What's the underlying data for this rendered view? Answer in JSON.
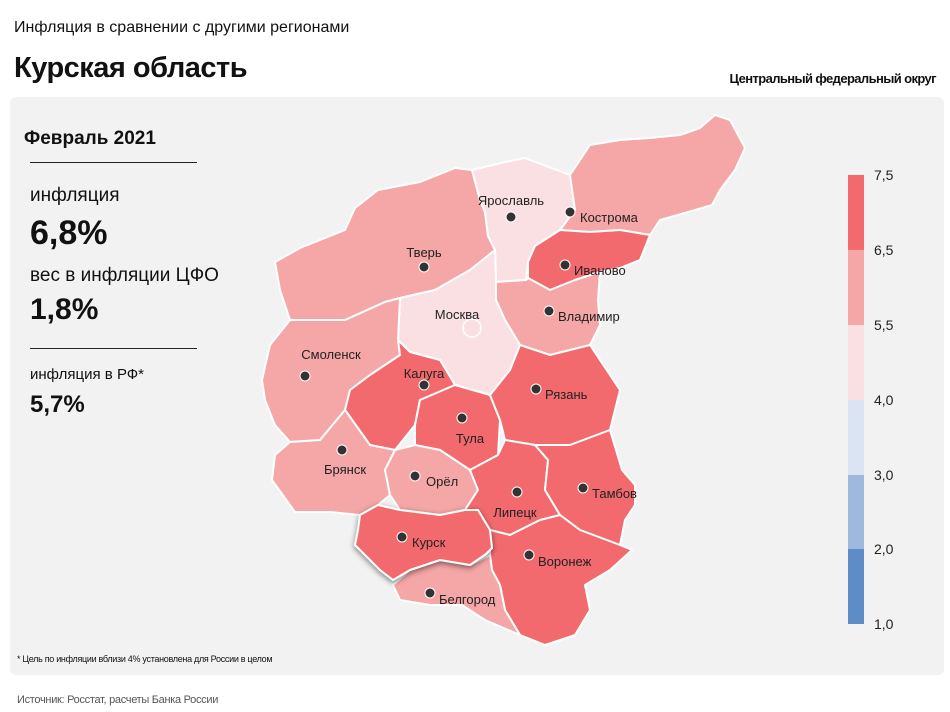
{
  "header": {
    "subtitle": "Инфляция в сравнении с другими регионами",
    "title": "Курская область",
    "district": "Центральный федеральный округ"
  },
  "stats": {
    "period": "Февраль 2021",
    "inflation_label": "инфляция",
    "inflation_value": "6,8%",
    "weight_label": "вес в инфляции ЦФО",
    "weight_value": "1,8%",
    "rf_label": "инфляция в РФ*",
    "rf_value": "5,7%"
  },
  "map": {
    "highlighted": "Курск",
    "regions": [
      {
        "name": "Ярославль",
        "bin": "4,0–5,5"
      },
      {
        "name": "Кострома",
        "bin": "5,5–6,5"
      },
      {
        "name": "Тверь",
        "bin": "5,5–6,5"
      },
      {
        "name": "Иваново",
        "bin": "6,5–7,5"
      },
      {
        "name": "Москва",
        "bin": "4,0–5,5"
      },
      {
        "name": "Владимир",
        "bin": "5,5–6,5"
      },
      {
        "name": "Смоленск",
        "bin": "5,5–6,5"
      },
      {
        "name": "Калуга",
        "bin": "6,5–7,5"
      },
      {
        "name": "Рязань",
        "bin": "6,5–7,5"
      },
      {
        "name": "Тула",
        "bin": "6,5–7,5"
      },
      {
        "name": "Брянск",
        "bin": "5,5–6,5"
      },
      {
        "name": "Орёл",
        "bin": "5,5–6,5"
      },
      {
        "name": "Липецк",
        "bin": "6,5–7,5"
      },
      {
        "name": "Тамбов",
        "bin": "6,5–7,5"
      },
      {
        "name": "Курск",
        "bin": "6,5–7,5"
      },
      {
        "name": "Воронеж",
        "bin": "6,5–7,5"
      },
      {
        "name": "Белгород",
        "bin": "5,5–6,5"
      }
    ]
  },
  "legend": {
    "ticks": [
      "7,5",
      "6,5",
      "5,5",
      "4,0",
      "3,0",
      "2,0",
      "1,0"
    ],
    "colors": [
      "#f26a6d",
      "#f5a6a6",
      "#fbe0e3",
      "#dbe4f3",
      "#9fb8dd",
      "#5e8cc7"
    ]
  },
  "footnote": "* Цель по инфляции вблизи 4% установлена для России в целом",
  "source": "Источник: Росстат, расчеты Банка России"
}
